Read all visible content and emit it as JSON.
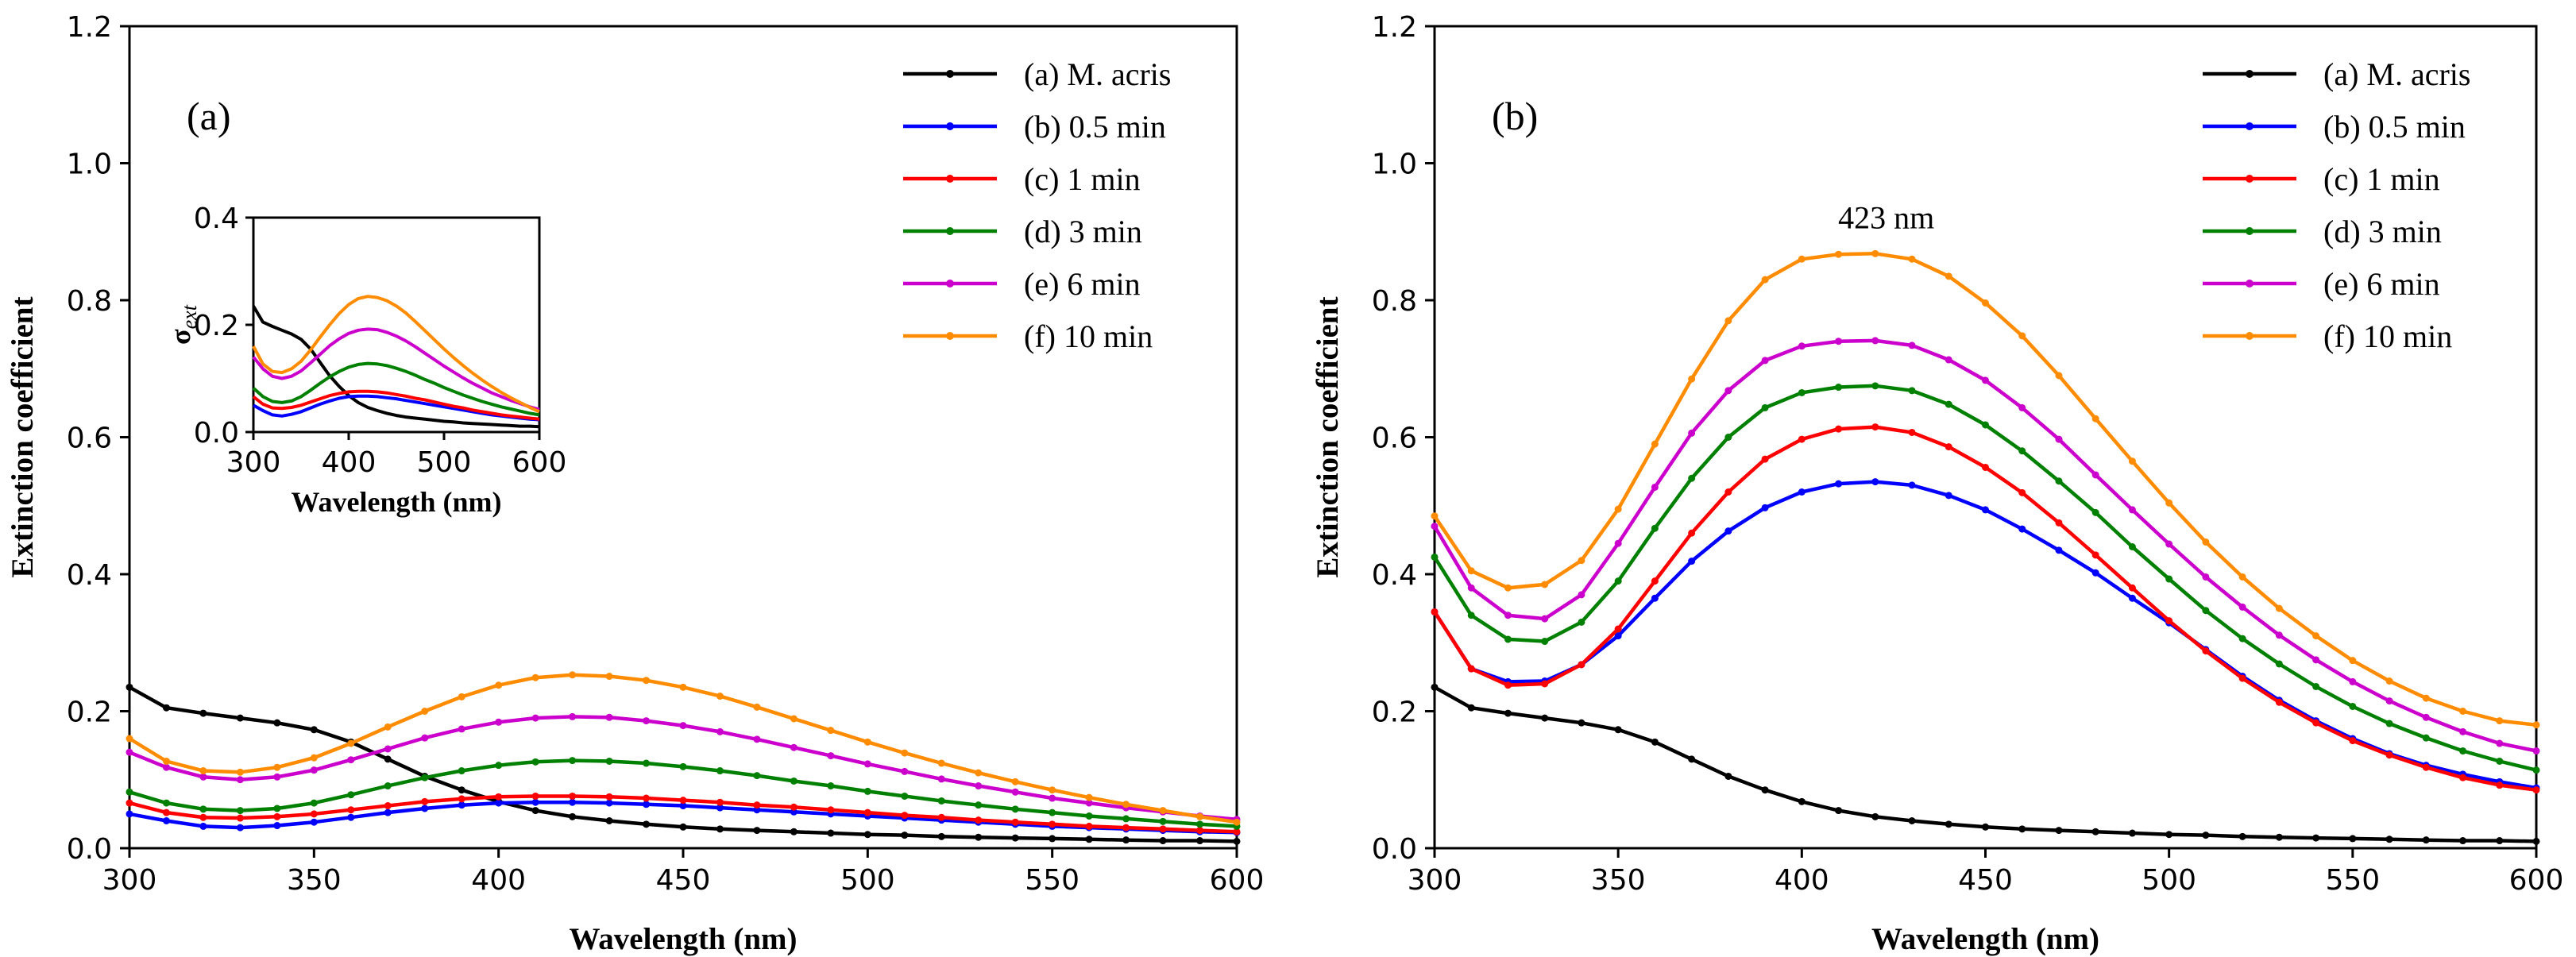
{
  "chart_data": [
    {
      "type": "line",
      "panel_label": "(a)",
      "xlabel": "Wavelength (nm)",
      "ylabel": "Extinction coefficient",
      "xlim": [
        300,
        600
      ],
      "ylim": [
        0,
        1.2
      ],
      "xticks": [
        300,
        350,
        400,
        450,
        500,
        550,
        600
      ],
      "yticks": [
        0.0,
        0.2,
        0.4,
        0.6,
        0.8,
        1.0,
        1.2
      ],
      "x": [
        300,
        310,
        320,
        330,
        340,
        350,
        360,
        370,
        380,
        390,
        400,
        410,
        420,
        430,
        440,
        450,
        460,
        470,
        480,
        490,
        500,
        510,
        520,
        530,
        540,
        550,
        560,
        570,
        580,
        590,
        600
      ],
      "series": [
        {
          "name": "(a) M. acris",
          "color": "#000000",
          "values": [
            0.235,
            0.205,
            0.197,
            0.19,
            0.183,
            0.173,
            0.155,
            0.13,
            0.105,
            0.085,
            0.068,
            0.055,
            0.046,
            0.04,
            0.035,
            0.031,
            0.028,
            0.026,
            0.024,
            0.022,
            0.02,
            0.019,
            0.017,
            0.016,
            0.015,
            0.014,
            0.013,
            0.012,
            0.011,
            0.011,
            0.01
          ]
        },
        {
          "name": "(b) 0.5 min",
          "color": "#0000ff",
          "values": [
            0.05,
            0.04,
            0.032,
            0.03,
            0.033,
            0.038,
            0.045,
            0.052,
            0.058,
            0.063,
            0.066,
            0.067,
            0.067,
            0.066,
            0.064,
            0.062,
            0.059,
            0.056,
            0.053,
            0.05,
            0.047,
            0.044,
            0.041,
            0.038,
            0.035,
            0.032,
            0.03,
            0.028,
            0.026,
            0.024,
            0.023
          ]
        },
        {
          "name": "(c) 1 min",
          "color": "#ff0000",
          "values": [
            0.066,
            0.052,
            0.045,
            0.044,
            0.046,
            0.05,
            0.056,
            0.062,
            0.068,
            0.072,
            0.075,
            0.076,
            0.076,
            0.075,
            0.073,
            0.07,
            0.067,
            0.063,
            0.06,
            0.056,
            0.052,
            0.048,
            0.045,
            0.041,
            0.038,
            0.035,
            0.032,
            0.03,
            0.028,
            0.026,
            0.024
          ]
        },
        {
          "name": "(d) 3 min",
          "color": "#008000",
          "values": [
            0.082,
            0.066,
            0.057,
            0.055,
            0.058,
            0.066,
            0.078,
            0.091,
            0.103,
            0.113,
            0.121,
            0.126,
            0.128,
            0.127,
            0.124,
            0.119,
            0.113,
            0.106,
            0.098,
            0.091,
            0.083,
            0.076,
            0.069,
            0.063,
            0.057,
            0.052,
            0.047,
            0.043,
            0.039,
            0.035,
            0.032
          ]
        },
        {
          "name": "(e) 6 min",
          "color": "#cc00cc",
          "values": [
            0.14,
            0.118,
            0.104,
            0.1,
            0.104,
            0.114,
            0.129,
            0.145,
            0.161,
            0.174,
            0.184,
            0.19,
            0.192,
            0.191,
            0.186,
            0.179,
            0.17,
            0.159,
            0.147,
            0.135,
            0.123,
            0.112,
            0.101,
            0.091,
            0.082,
            0.073,
            0.066,
            0.059,
            0.053,
            0.047,
            0.042
          ]
        },
        {
          "name": "(f) 10 min",
          "color": "#ff8c00",
          "values": [
            0.16,
            0.127,
            0.113,
            0.111,
            0.118,
            0.132,
            0.153,
            0.177,
            0.2,
            0.221,
            0.238,
            0.249,
            0.253,
            0.251,
            0.245,
            0.235,
            0.222,
            0.206,
            0.189,
            0.172,
            0.155,
            0.139,
            0.124,
            0.11,
            0.097,
            0.085,
            0.074,
            0.064,
            0.055,
            0.046,
            0.038
          ]
        }
      ],
      "legend": "top-right",
      "inset": {
        "xlabel": "Wavelength (nm)",
        "ylabel_main": "σ",
        "ylabel_sub": "ext",
        "xlim": [
          300,
          600
        ],
        "ylim": [
          0,
          0.4
        ],
        "xticks": [
          300,
          400,
          500,
          600
        ],
        "yticks": [
          0.0,
          0.2,
          0.4
        ]
      }
    },
    {
      "type": "line",
      "panel_label": "(b)",
      "xlabel": "Wavelength (nm)",
      "ylabel": "Extinction coefficient",
      "xlim": [
        300,
        600
      ],
      "ylim": [
        0,
        1.2
      ],
      "xticks": [
        300,
        350,
        400,
        450,
        500,
        550,
        600
      ],
      "yticks": [
        0.0,
        0.2,
        0.4,
        0.6,
        0.8,
        1.0,
        1.2
      ],
      "annotation": "423 nm",
      "annotation_at": [
        423,
        0.905
      ],
      "x": [
        300,
        310,
        320,
        330,
        340,
        350,
        360,
        370,
        380,
        390,
        400,
        410,
        420,
        430,
        440,
        450,
        460,
        470,
        480,
        490,
        500,
        510,
        520,
        530,
        540,
        550,
        560,
        570,
        580,
        590,
        600
      ],
      "series": [
        {
          "name": "(a) M. acris",
          "color": "#000000",
          "values": [
            0.235,
            0.205,
            0.197,
            0.19,
            0.183,
            0.173,
            0.155,
            0.13,
            0.105,
            0.085,
            0.068,
            0.055,
            0.046,
            0.04,
            0.035,
            0.031,
            0.028,
            0.026,
            0.024,
            0.022,
            0.02,
            0.019,
            0.017,
            0.016,
            0.015,
            0.014,
            0.013,
            0.012,
            0.011,
            0.011,
            0.01
          ]
        },
        {
          "name": "(b) 0.5 min",
          "color": "#0000ff",
          "values": [
            0.345,
            0.262,
            0.243,
            0.244,
            0.268,
            0.31,
            0.365,
            0.419,
            0.463,
            0.497,
            0.52,
            0.532,
            0.535,
            0.53,
            0.515,
            0.494,
            0.466,
            0.435,
            0.402,
            0.365,
            0.329,
            0.29,
            0.251,
            0.216,
            0.186,
            0.16,
            0.138,
            0.121,
            0.108,
            0.097,
            0.088
          ]
        },
        {
          "name": "(c) 1 min",
          "color": "#ff0000",
          "values": [
            0.345,
            0.262,
            0.238,
            0.24,
            0.268,
            0.32,
            0.39,
            0.46,
            0.52,
            0.568,
            0.597,
            0.612,
            0.615,
            0.607,
            0.586,
            0.556,
            0.519,
            0.475,
            0.428,
            0.38,
            0.332,
            0.288,
            0.248,
            0.213,
            0.183,
            0.157,
            0.136,
            0.118,
            0.103,
            0.092,
            0.085
          ]
        },
        {
          "name": "(d) 3 min",
          "color": "#008000",
          "values": [
            0.425,
            0.34,
            0.305,
            0.302,
            0.33,
            0.39,
            0.467,
            0.54,
            0.6,
            0.643,
            0.665,
            0.673,
            0.675,
            0.668,
            0.648,
            0.618,
            0.58,
            0.536,
            0.49,
            0.44,
            0.393,
            0.347,
            0.306,
            0.269,
            0.236,
            0.207,
            0.182,
            0.161,
            0.142,
            0.127,
            0.114
          ]
        },
        {
          "name": "(e) 6 min",
          "color": "#cc00cc",
          "values": [
            0.47,
            0.38,
            0.34,
            0.335,
            0.37,
            0.445,
            0.527,
            0.606,
            0.668,
            0.712,
            0.733,
            0.74,
            0.741,
            0.734,
            0.713,
            0.683,
            0.643,
            0.597,
            0.545,
            0.494,
            0.444,
            0.396,
            0.352,
            0.311,
            0.275,
            0.243,
            0.215,
            0.191,
            0.17,
            0.153,
            0.142
          ]
        },
        {
          "name": "(f) 10 min",
          "color": "#ff8c00",
          "values": [
            0.485,
            0.405,
            0.38,
            0.385,
            0.42,
            0.495,
            0.59,
            0.685,
            0.77,
            0.83,
            0.86,
            0.867,
            0.868,
            0.86,
            0.835,
            0.796,
            0.748,
            0.69,
            0.627,
            0.565,
            0.504,
            0.447,
            0.396,
            0.35,
            0.31,
            0.274,
            0.244,
            0.219,
            0.2,
            0.186,
            0.18
          ]
        }
      ],
      "legend": "top-right"
    }
  ]
}
